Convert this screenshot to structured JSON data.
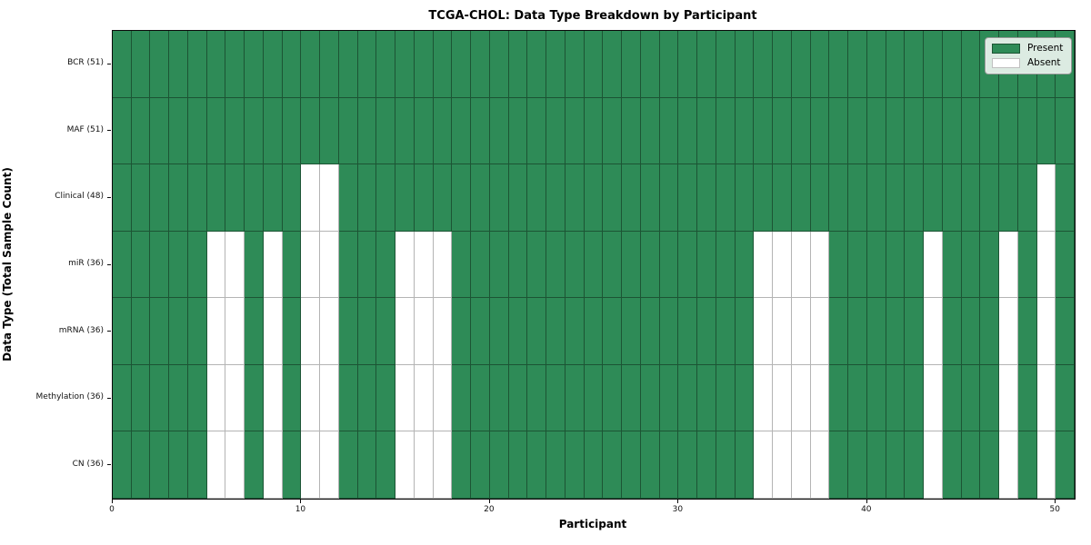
{
  "chart_data": {
    "type": "heatmap",
    "title": "TCGA-CHOL: Data Type Breakdown by Participant",
    "xlabel": "Participant",
    "ylabel": "Data Type (Total Sample Count)",
    "x_ticks": [
      0,
      10,
      20,
      30,
      40,
      50
    ],
    "x_range": [
      0,
      51
    ],
    "n_participants": 51,
    "grid": true,
    "legend_position": "upper right",
    "legend": [
      {
        "label": "Present",
        "color": "#2e8b57"
      },
      {
        "label": "Absent",
        "color": "#ffffff"
      }
    ],
    "cell_states": {
      "present": 1,
      "absent": 0
    },
    "rows": [
      {
        "label": "BCR (51)",
        "data_type": "BCR",
        "present_count": 51,
        "absent_participants": []
      },
      {
        "label": "MAF (51)",
        "data_type": "MAF",
        "present_count": 51,
        "absent_participants": []
      },
      {
        "label": "Clinical (48)",
        "data_type": "Clinical",
        "present_count": 48,
        "absent_participants": [
          10,
          11,
          49
        ]
      },
      {
        "label": "miR (36)",
        "data_type": "miR",
        "present_count": 36,
        "absent_participants": [
          5,
          6,
          8,
          10,
          11,
          15,
          16,
          17,
          34,
          35,
          36,
          37,
          43,
          47,
          49
        ]
      },
      {
        "label": "mRNA (36)",
        "data_type": "mRNA",
        "present_count": 36,
        "absent_participants": [
          5,
          6,
          8,
          10,
          11,
          15,
          16,
          17,
          34,
          35,
          36,
          37,
          43,
          47,
          49
        ]
      },
      {
        "label": "Methylation (36)",
        "data_type": "Methylation",
        "present_count": 36,
        "absent_participants": [
          5,
          6,
          8,
          10,
          11,
          15,
          16,
          17,
          34,
          35,
          36,
          37,
          43,
          47,
          49
        ]
      },
      {
        "label": "CN (36)",
        "data_type": "CN",
        "present_count": 36,
        "absent_participants": [
          5,
          6,
          8,
          10,
          11,
          15,
          16,
          17,
          34,
          35,
          36,
          37,
          43,
          47,
          49
        ]
      }
    ]
  }
}
